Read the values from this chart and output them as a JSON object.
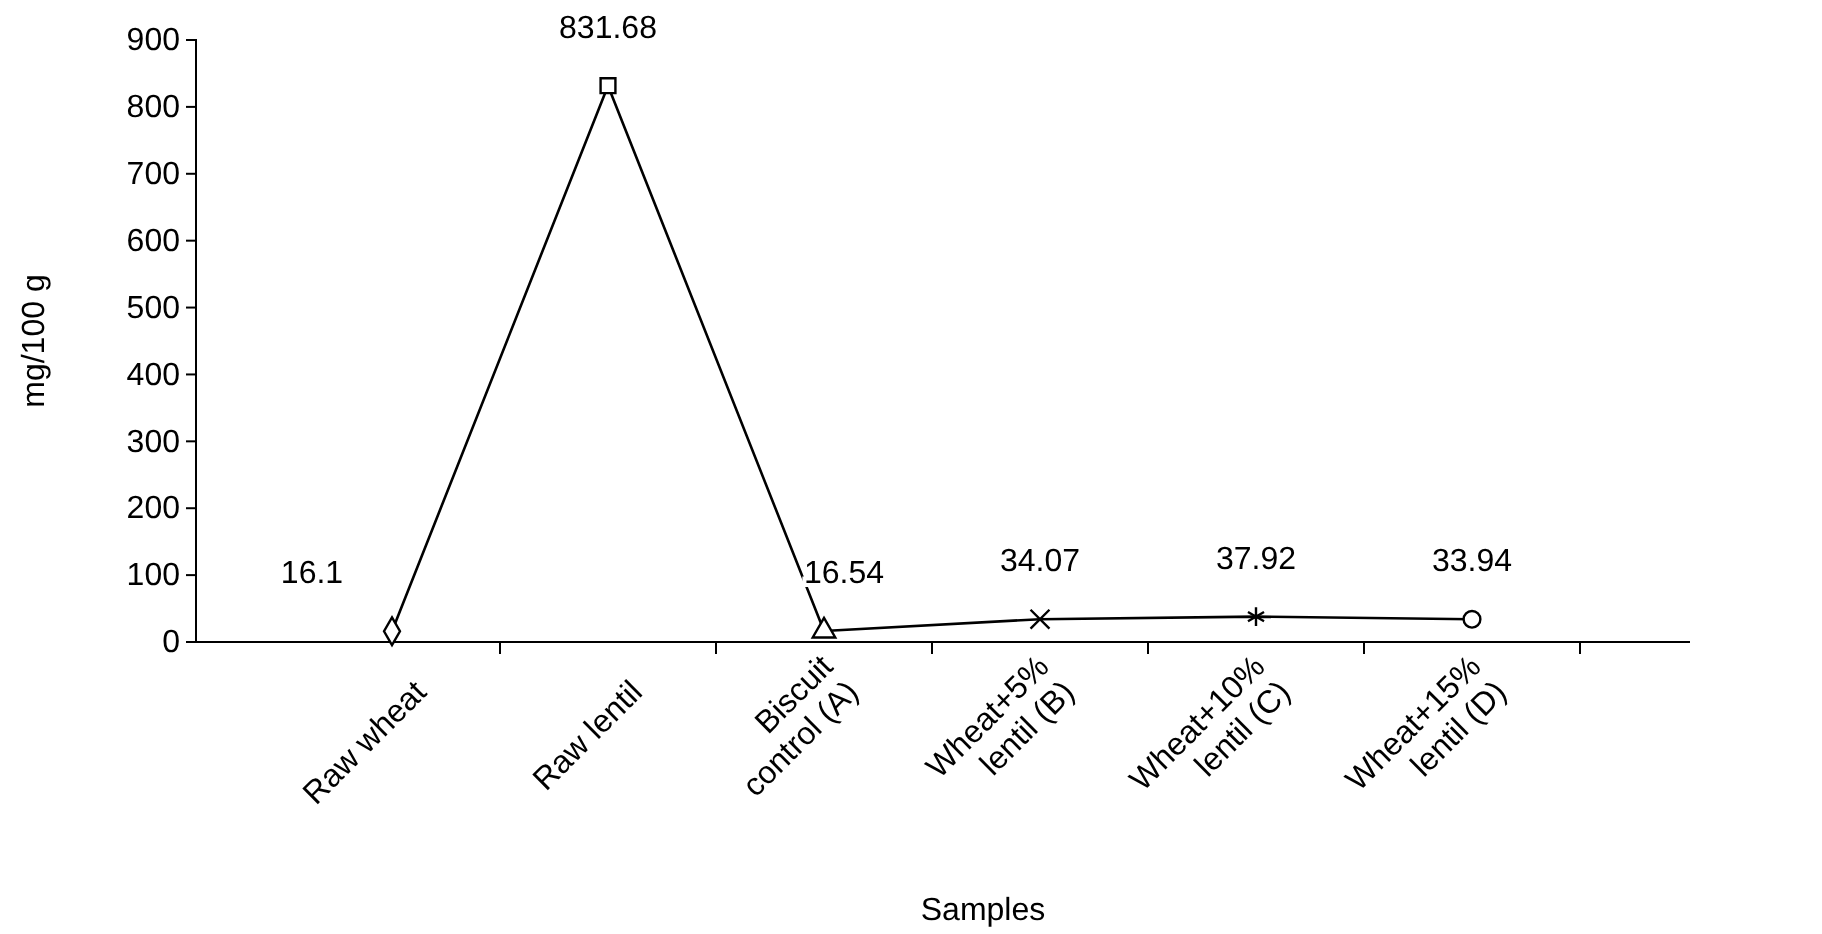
{
  "chart_data": {
    "type": "line",
    "xlabel": "Samples",
    "ylabel": "mg/100 g",
    "categories": [
      "Raw wheat",
      "Raw lentil",
      "Biscuit control (A)",
      "Wheat+5% lentil (B)",
      "Wheat+10% lentil (C)",
      "Wheat+15% lentil (D)"
    ],
    "series": [
      {
        "color": "#000000",
        "values": [
          16.1,
          831.68,
          16.54,
          34.07,
          37.92,
          33.94
        ]
      }
    ],
    "marker": [
      "diamond",
      "square",
      "triangle",
      "cross",
      "star",
      "circle"
    ],
    "line_style": "solid",
    "data_labels": true,
    "grid": false,
    "ylim": [
      0,
      900
    ],
    "yticks": [
      0,
      100,
      200,
      300,
      400,
      500,
      600,
      700,
      800,
      900
    ]
  }
}
